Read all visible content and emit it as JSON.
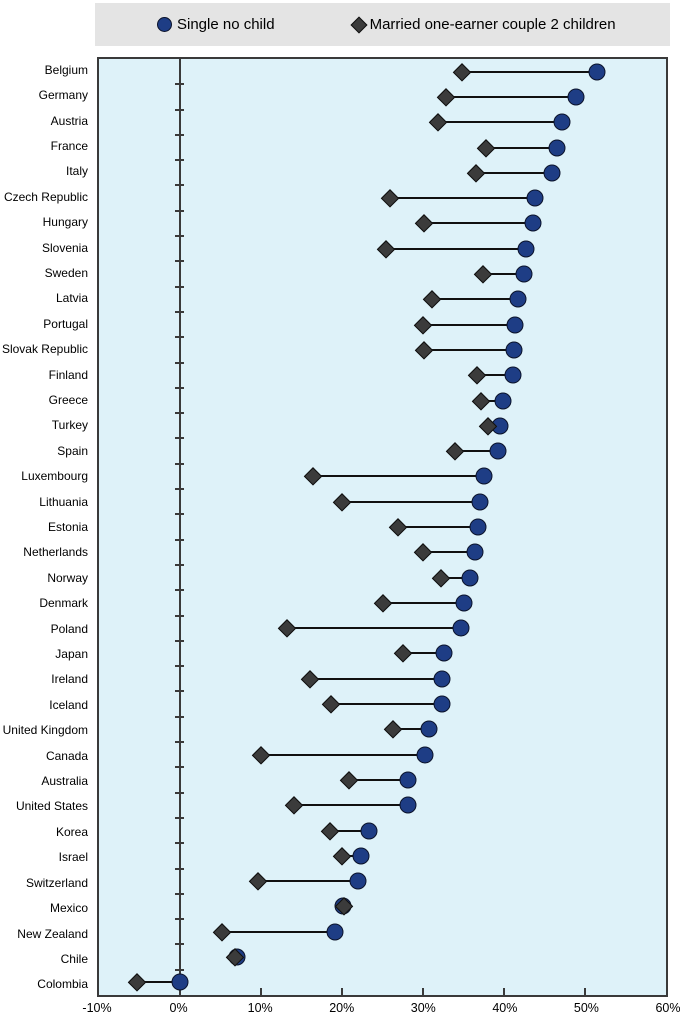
{
  "legend": {
    "single_label": "Single no child",
    "married_label": "Married one-earner couple 2 children"
  },
  "colors": {
    "single_marker": "#1e3d85",
    "married_marker": "#3b3b3b",
    "plot_background": "#def2f9",
    "legend_background": "#e4e4e4",
    "axis": "#3a3a3a"
  },
  "chart_data": {
    "type": "scatter",
    "variant": "dumbbell",
    "title": "",
    "xlabel": "",
    "ylabel": "",
    "unit": "%",
    "grid": false,
    "legend_position": "top",
    "x_axis": {
      "min": -10,
      "max": 60,
      "tick_values": [
        -10,
        0,
        10,
        20,
        30,
        40,
        50,
        60
      ],
      "tick_labels": [
        "-10%",
        "0%",
        "10%",
        "20%",
        "30%",
        "40%",
        "50%",
        "60%"
      ]
    },
    "categories": [
      "Belgium",
      "Germany",
      "Austria",
      "France",
      "Italy",
      "Czech Republic",
      "Hungary",
      "Slovenia",
      "Sweden",
      "Latvia",
      "Portugal",
      "Slovak Republic",
      "Finland",
      "Greece",
      "Turkey",
      "Spain",
      "Luxembourg",
      "Lithuania",
      "Estonia",
      "Netherlands",
      "Norway",
      "Denmark",
      "Poland",
      "Japan",
      "Ireland",
      "Iceland",
      "United Kingdom",
      "Canada",
      "Australia",
      "United States",
      "Korea",
      "Israel",
      "Switzerland",
      "Mexico",
      "New Zealand",
      "Chile",
      "Colombia"
    ],
    "series": [
      {
        "name": "Single no child",
        "marker": "circle",
        "color": "#1e3d85",
        "values": [
          51.5,
          48.9,
          47.2,
          46.5,
          45.9,
          43.8,
          43.6,
          42.7,
          42.5,
          41.7,
          41.4,
          41.2,
          41.1,
          39.9,
          39.5,
          39.2,
          37.5,
          37.0,
          36.8,
          36.4,
          35.8,
          35.0,
          34.7,
          32.6,
          32.3,
          32.3,
          30.7,
          30.2,
          28.2,
          28.1,
          23.3,
          22.4,
          22.0,
          20.1,
          19.1,
          7.0,
          0.0
        ]
      },
      {
        "name": "Married one-earner couple 2 children",
        "marker": "diamond",
        "color": "#3b3b3b",
        "values": [
          34.8,
          32.8,
          31.9,
          37.8,
          36.5,
          25.9,
          30.1,
          25.4,
          37.4,
          31.1,
          30.0,
          30.1,
          36.7,
          37.1,
          38.0,
          33.9,
          16.4,
          20.0,
          26.9,
          30.0,
          32.2,
          25.1,
          13.2,
          27.5,
          16.0,
          18.6,
          26.3,
          10.0,
          20.9,
          14.1,
          18.5,
          20.0,
          9.6,
          20.3,
          5.2,
          6.8,
          -5.3
        ]
      }
    ]
  }
}
